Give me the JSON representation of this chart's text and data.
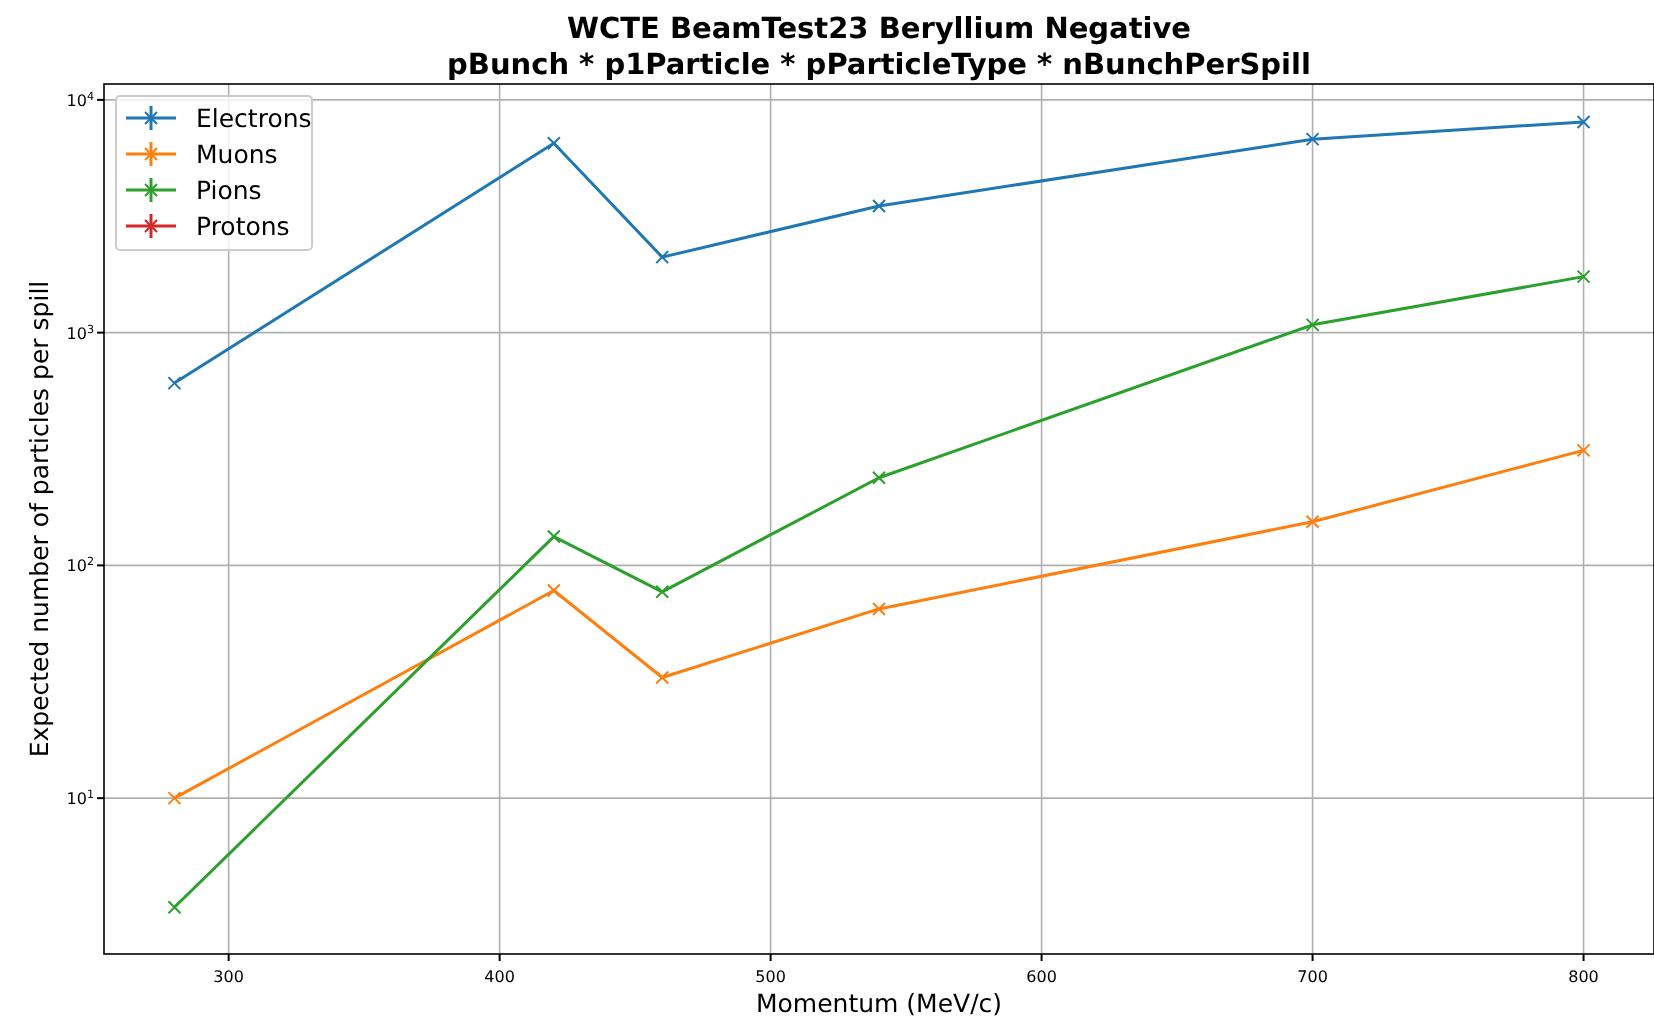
{
  "chart_data": {
    "type": "line",
    "title": "WCTE BeamTest23 Beryllium Negative\npBunch * p1Particle * pParticleType * nBunchPerSpill",
    "xlabel": "Momentum (MeV/c)",
    "ylabel": "Expected number of particles per spill",
    "x": [
      280,
      420,
      460,
      540,
      700,
      800
    ],
    "series": [
      {
        "name": "Electrons",
        "color": "#1f77b4",
        "values": [
          607,
          6510,
          2110,
          3500,
          6780,
          8040
        ]
      },
      {
        "name": "Muons",
        "color": "#ff7f0e",
        "values": [
          10,
          78,
          33,
          65,
          154,
          312
        ]
      },
      {
        "name": "Pions",
        "color": "#2ca02c",
        "values": [
          3.4,
          133,
          77,
          238,
          1080,
          1740
        ]
      },
      {
        "name": "Protons",
        "color": "#d62728",
        "values": [
          null,
          null,
          null,
          null,
          null,
          null
        ]
      }
    ],
    "xlim": [
      254,
      826
    ],
    "xticks": [
      300,
      400,
      500,
      600,
      700,
      800
    ],
    "ylim": [
      2.14,
      11700
    ],
    "yticks": [
      {
        "value": 10,
        "label": "10$^{1}$"
      },
      {
        "value": 100,
        "label": "10$^{2}$"
      },
      {
        "value": 1000,
        "label": "10$^{3}$"
      },
      {
        "value": 10000,
        "label": "10$^{4}$"
      }
    ],
    "log": "y",
    "grid": true,
    "legend": "top left",
    "marker": "cross",
    "line_style": "solid"
  }
}
